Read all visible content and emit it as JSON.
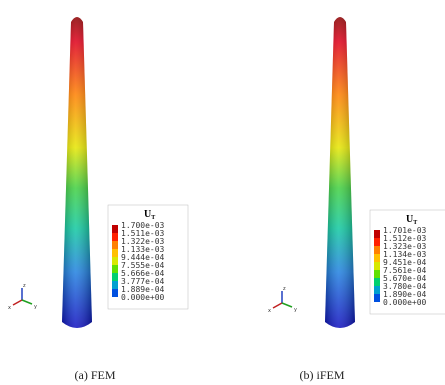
{
  "panels": [
    {
      "caption": "(a) FEM",
      "legend": {
        "title": "U",
        "subscript": "T",
        "labels": [
          "1.700e-03",
          "1.511e-03",
          "1.322e-03",
          "1.133e-03",
          "9.444e-04",
          "7.555e-04",
          "5.666e-04",
          "3.777e-04",
          "1.889e-04",
          "0.000e+00"
        ]
      },
      "triad": [
        "z",
        "x",
        "y"
      ]
    },
    {
      "caption": "(b) iFEM",
      "legend": {
        "title": "U",
        "subscript": "T",
        "labels": [
          "1.701e-03",
          "1.512e-03",
          "1.323e-03",
          "1.134e-03",
          "9.451e-04",
          "7.561e-04",
          "5.670e-04",
          "3.780e-04",
          "1.890e-04",
          "0.000e+00"
        ]
      },
      "triad": [
        "z",
        "x",
        "y"
      ]
    }
  ]
}
